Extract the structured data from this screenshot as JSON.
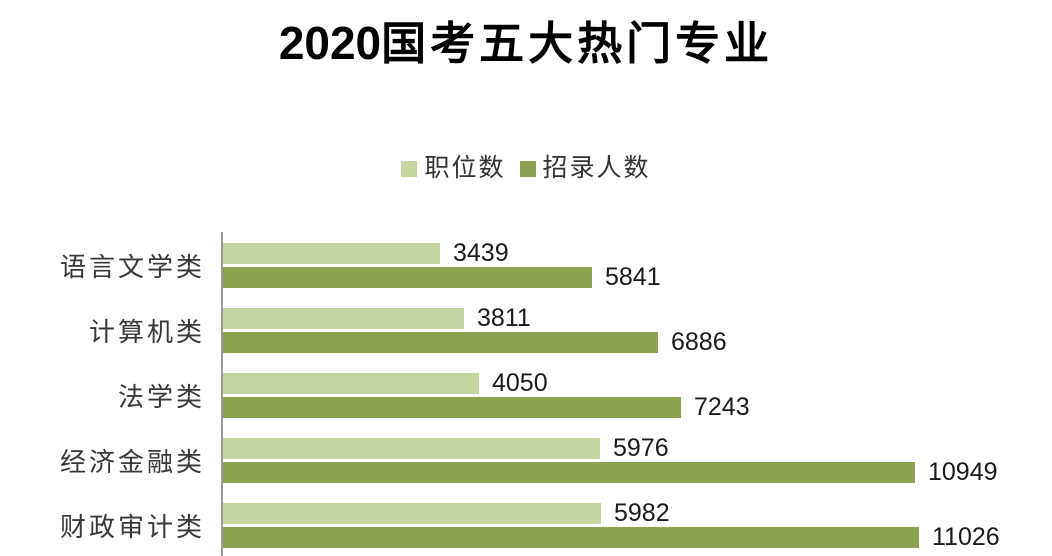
{
  "chart_data": {
    "type": "bar",
    "orientation": "horizontal",
    "title": "2020国考五大热门专业",
    "title_parts": {
      "year": "2020",
      "rest": "国考五大热门专业"
    },
    "categories": [
      "语言文学类",
      "计算机类",
      "法学类",
      "经济金融类",
      "财政审计类"
    ],
    "series": [
      {
        "name": "职位数",
        "color": "#c5d5a2",
        "values": [
          3439,
          3811,
          4050,
          5976,
          5982
        ]
      },
      {
        "name": "招录人数",
        "color": "#8ba24e",
        "values": [
          5841,
          6886,
          7243,
          10949,
          11026
        ]
      }
    ],
    "xlim": [
      0,
      12000
    ],
    "value_labels": true,
    "legend_position": "top-center",
    "grid": false,
    "axis_color": "#9a9a9a",
    "background": "#ffffff"
  }
}
